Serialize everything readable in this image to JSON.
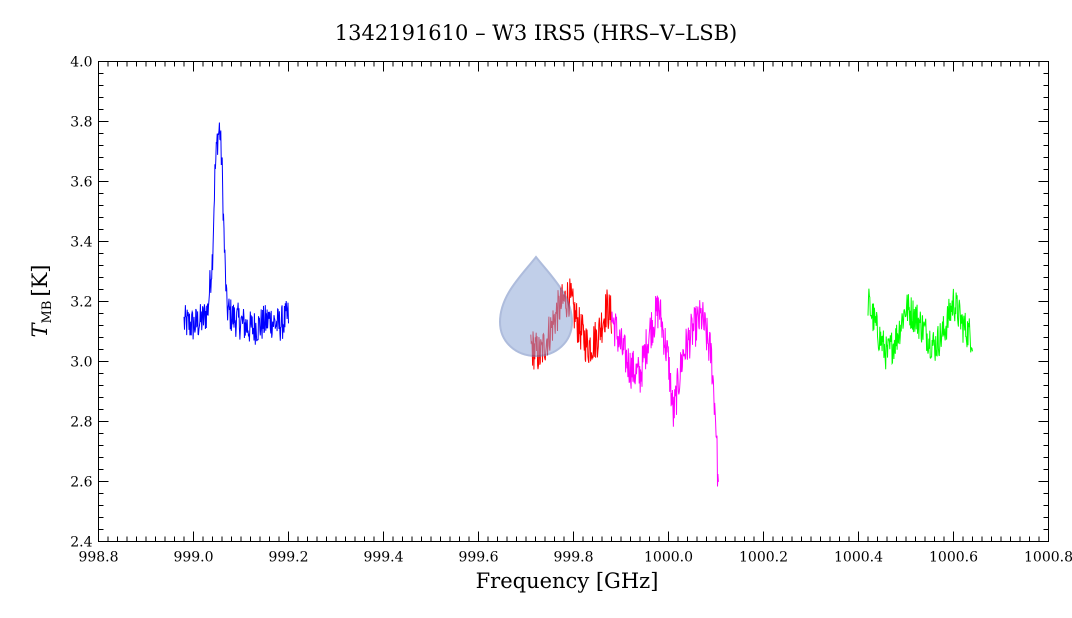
{
  "chart_data": {
    "type": "line",
    "title": "1342191610 – W3 IRS5 (HRS–V–LSB)",
    "xlabel": "Frequency [GHz]",
    "ylabel_main": "T",
    "ylabel_sub": "MB",
    "ylabel_unit": "[K]",
    "xlim": [
      998.8,
      1000.8
    ],
    "ylim": [
      2.4,
      4.0
    ],
    "x_ticks": [
      998.8,
      999.0,
      999.2,
      999.4,
      999.6,
      999.8,
      1000.0,
      1000.2,
      1000.4,
      1000.6,
      1000.8
    ],
    "x_tick_labels": [
      "998.8",
      "999.0",
      "999.2",
      "999.4",
      "999.6",
      "999.8",
      "1000.0",
      "1000.2",
      "1000.4",
      "1000.6",
      "1000.8"
    ],
    "y_ticks": [
      2.4,
      2.6,
      2.8,
      3.0,
      3.2,
      3.4,
      3.6,
      3.8,
      4.0
    ],
    "y_tick_labels": [
      "2.4",
      "2.6",
      "2.8",
      "3.0",
      "3.2",
      "3.4",
      "3.6",
      "3.8",
      "4.0"
    ],
    "grid": false,
    "legend": "none",
    "series": [
      {
        "color": "#0000ff",
        "x": [
          998.98,
          999.0,
          999.02,
          999.03,
          999.04,
          999.045,
          999.05,
          999.055,
          999.06,
          999.065,
          999.07,
          999.08,
          999.1,
          999.12,
          999.14,
          999.16,
          999.18,
          999.2
        ],
        "y": [
          3.13,
          3.12,
          3.14,
          3.17,
          3.35,
          3.62,
          3.74,
          3.78,
          3.65,
          3.38,
          3.18,
          3.15,
          3.13,
          3.11,
          3.12,
          3.14,
          3.12,
          3.15
        ],
        "noise": 0.06
      },
      {
        "color": "#ff0000",
        "x": [
          999.71,
          999.73,
          999.75,
          999.77,
          999.79,
          999.81,
          999.83,
          999.85,
          999.87,
          999.88
        ],
        "y": [
          3.05,
          3.02,
          3.1,
          3.18,
          3.22,
          3.12,
          3.05,
          3.08,
          3.18,
          3.15
        ],
        "noise": 0.07
      },
      {
        "color": "#ff00ff",
        "x": [
          999.88,
          999.9,
          999.92,
          999.94,
          999.96,
          999.98,
          1000.0,
          1000.01,
          1000.03,
          1000.05,
          1000.07,
          1000.09,
          1000.1,
          1000.105
        ],
        "y": [
          3.15,
          3.05,
          2.98,
          2.95,
          3.1,
          3.18,
          3.0,
          2.82,
          3.02,
          3.1,
          3.15,
          3.02,
          2.8,
          2.55
        ],
        "noise": 0.07
      },
      {
        "color": "#00ff00",
        "x": [
          1000.42,
          1000.44,
          1000.46,
          1000.48,
          1000.5,
          1000.52,
          1000.54,
          1000.56,
          1000.58,
          1000.6,
          1000.62,
          1000.64
        ],
        "y": [
          3.2,
          3.1,
          3.02,
          3.08,
          3.18,
          3.15,
          3.1,
          3.05,
          3.1,
          3.2,
          3.12,
          3.08
        ],
        "noise": 0.06
      }
    ]
  }
}
